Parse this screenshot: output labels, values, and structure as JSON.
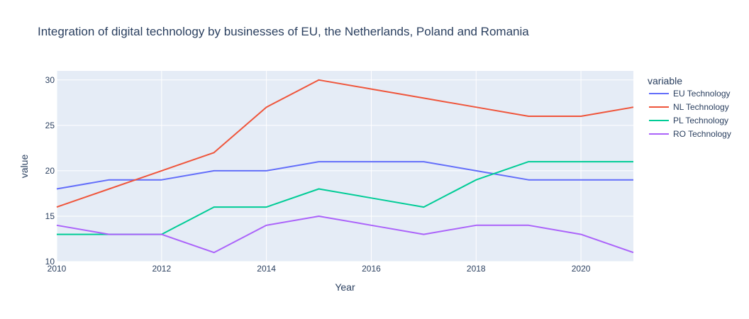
{
  "chart_data": {
    "type": "line",
    "title": "Integration of digital technology by businesses of EU, the Netherlands, Poland and Romania",
    "xlabel": "Year",
    "ylabel": "value",
    "legend_title": "variable",
    "legend_position": "right",
    "grid": true,
    "xlim": [
      2010,
      2021
    ],
    "ylim": [
      10,
      31
    ],
    "x_ticks": [
      2010,
      2012,
      2014,
      2016,
      2018,
      2020
    ],
    "y_ticks": [
      10,
      15,
      20,
      25,
      30
    ],
    "x": [
      2010,
      2011,
      2012,
      2013,
      2014,
      2015,
      2016,
      2017,
      2018,
      2019,
      2020,
      2021
    ],
    "series": [
      {
        "name": "EU Technology",
        "color": "#636efa",
        "values": [
          18,
          19,
          19,
          20,
          20,
          21,
          21,
          21,
          20,
          19,
          19,
          19
        ]
      },
      {
        "name": "NL Technology",
        "color": "#EF553B",
        "values": [
          16,
          18,
          20,
          22,
          27,
          30,
          29,
          28,
          27,
          26,
          26,
          27
        ]
      },
      {
        "name": "PL Technology",
        "color": "#00cc96",
        "values": [
          13,
          13,
          13,
          16,
          16,
          18,
          17,
          16,
          19,
          21,
          21,
          21
        ]
      },
      {
        "name": "RO Technology",
        "color": "#ab63fa",
        "values": [
          14,
          13,
          13,
          11,
          14,
          15,
          14,
          13,
          14,
          14,
          13,
          11
        ]
      }
    ]
  }
}
